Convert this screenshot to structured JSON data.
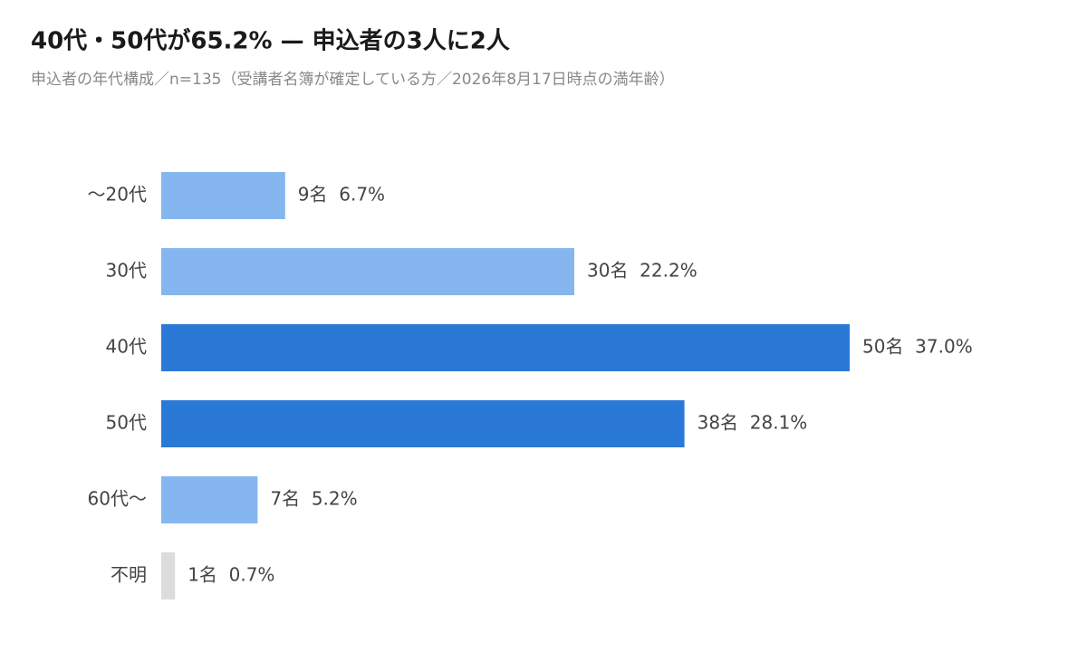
{
  "chart_data": {
    "type": "barh",
    "title": "40代・50代が65.2% — 申込者の3人に2人",
    "subtitle": "申込者の年代構成／n=135（受講者名簿が確定している方／2026年8月17日時点の満年齢）",
    "categories": [
      "〜20代",
      "30代",
      "40代",
      "50代",
      "60代〜",
      "不明"
    ],
    "values": [
      9,
      30,
      50,
      38,
      7,
      1
    ],
    "value_labels": [
      "9名  6.7%",
      "30名  22.2%",
      "50名  37.0%",
      "38名  28.1%",
      "7名  5.2%",
      "1名  0.7%"
    ],
    "colors": [
      "#86b6ef",
      "#86b6ef",
      "#2a79d6",
      "#2a79d6",
      "#86b6ef",
      "#dcdcdc"
    ]
  }
}
